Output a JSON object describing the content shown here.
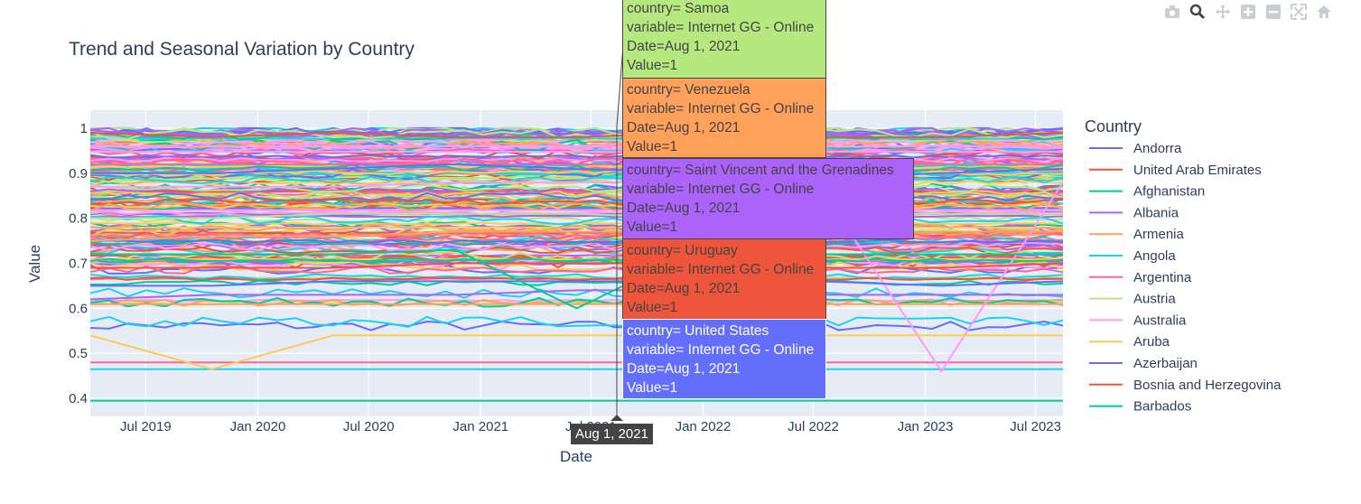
{
  "chart_data": {
    "type": "line",
    "title": "Trend and Seasonal Variation by Country",
    "xlabel": "Date",
    "ylabel": "Value",
    "x_ticks": [
      "Jul 2019",
      "Jan 2020",
      "Jul 2020",
      "Jan 2021",
      "Jul 2021",
      "Jan 2022",
      "Jul 2022",
      "Jan 2023",
      "Jul 2023"
    ],
    "x_range": [
      "2019-04-01",
      "2023-08-15"
    ],
    "y_ticks": [
      "0.4",
      "0.5",
      "0.6",
      "0.7",
      "0.8",
      "0.9",
      "1"
    ],
    "ylim": [
      0.36,
      1.04
    ],
    "grid": true,
    "legend_title": "Country",
    "legend_position": "right",
    "series": [
      {
        "name": "Andorra",
        "color": "#636efa",
        "values": [
          0.9,
          0.9,
          0.91,
          0.92,
          0.91,
          0.9,
          0.89,
          0.9,
          0.91
        ]
      },
      {
        "name": "United Arab Emirates",
        "color": "#EF553B",
        "values": [
          0.99,
          0.98,
          0.99,
          0.98,
          0.98,
          0.99,
          0.98,
          0.98,
          0.99
        ]
      },
      {
        "name": "Afghanistan",
        "color": "#00cc96",
        "values": [
          0.395,
          0.395,
          0.395,
          0.395,
          0.395,
          0.395,
          0.395,
          0.395,
          0.395
        ]
      },
      {
        "name": "Albania",
        "color": "#ab63fa",
        "values": [
          0.62,
          0.63,
          0.63,
          0.63,
          0.64,
          0.64,
          0.63,
          0.63,
          0.63
        ]
      },
      {
        "name": "Armenia",
        "color": "#FFA15A",
        "values": [
          0.75,
          0.76,
          0.76,
          0.77,
          0.77,
          0.77,
          0.76,
          0.77,
          0.77
        ]
      },
      {
        "name": "Angola",
        "color": "#19d3f3",
        "values": [
          0.465,
          0.465,
          0.465,
          0.465,
          0.465,
          0.465,
          0.465,
          0.465,
          0.465
        ]
      },
      {
        "name": "Argentina",
        "color": "#FF6692",
        "values": [
          0.48,
          0.48,
          0.48,
          0.48,
          0.48,
          0.48,
          0.48,
          0.48,
          0.48
        ]
      },
      {
        "name": "Austria",
        "color": "#B6E880",
        "values": [
          0.8,
          0.8,
          0.81,
          0.81,
          0.81,
          0.8,
          0.81,
          0.81,
          0.81
        ]
      },
      {
        "name": "Australia",
        "color": "#FF97FF",
        "values": [
          0.87,
          0.87,
          0.87,
          0.88,
          0.88,
          0.88,
          0.87,
          0.46,
          0.88
        ]
      },
      {
        "name": "Aruba",
        "color": "#FECB52",
        "values": [
          0.54,
          0.465,
          0.54,
          0.54,
          0.54,
          0.54,
          0.54,
          0.54,
          0.54
        ]
      },
      {
        "name": "Azerbaijan",
        "color": "#636efa",
        "values": [
          0.65,
          0.65,
          0.66,
          0.66,
          0.66,
          0.66,
          0.66,
          0.65,
          0.66
        ]
      },
      {
        "name": "Bosnia and Herzegovina",
        "color": "#EF553B",
        "values": [
          0.69,
          0.69,
          0.69,
          0.7,
          0.7,
          0.7,
          0.69,
          0.69,
          0.7
        ]
      },
      {
        "name": "Barbados",
        "color": "#00cc96",
        "values": [
          0.72,
          0.72,
          0.72,
          0.73,
          0.6,
          0.73,
          0.72,
          0.72,
          0.72
        ]
      }
    ]
  },
  "hover_date_label": "Aug 1, 2021",
  "hover_boxes": [
    {
      "lines": [
        "country= Samoa",
        "variable= Internet GG - Online",
        "Date=Aug 1, 2021",
        "Value=1"
      ],
      "color": "#B6E880"
    },
    {
      "lines": [
        "country= Venezuela",
        "variable= Internet GG - Online",
        "Date=Aug 1, 2021",
        "Value=1"
      ],
      "color": "#FFA15A"
    },
    {
      "lines": [
        "country= Saint Vincent and the Grenadines",
        "variable= Internet GG - Online",
        "Date=Aug 1, 2021",
        "Value=1"
      ],
      "color": "#ab63fa"
    },
    {
      "lines": [
        "country= Uruguay",
        "variable= Internet GG - Online",
        "Date=Aug 1, 2021",
        "Value=1"
      ],
      "color": "#EF553B"
    },
    {
      "lines": [
        "country= United States",
        "variable= Internet GG - Online",
        "Date=Aug 1, 2021",
        "Value=1"
      ],
      "color": "#636efa"
    }
  ],
  "modebar": [
    "camera-icon",
    "zoom-icon",
    "pan-icon",
    "zoom-in-icon",
    "zoom-out-icon",
    "autoscale-icon",
    "home-icon"
  ]
}
